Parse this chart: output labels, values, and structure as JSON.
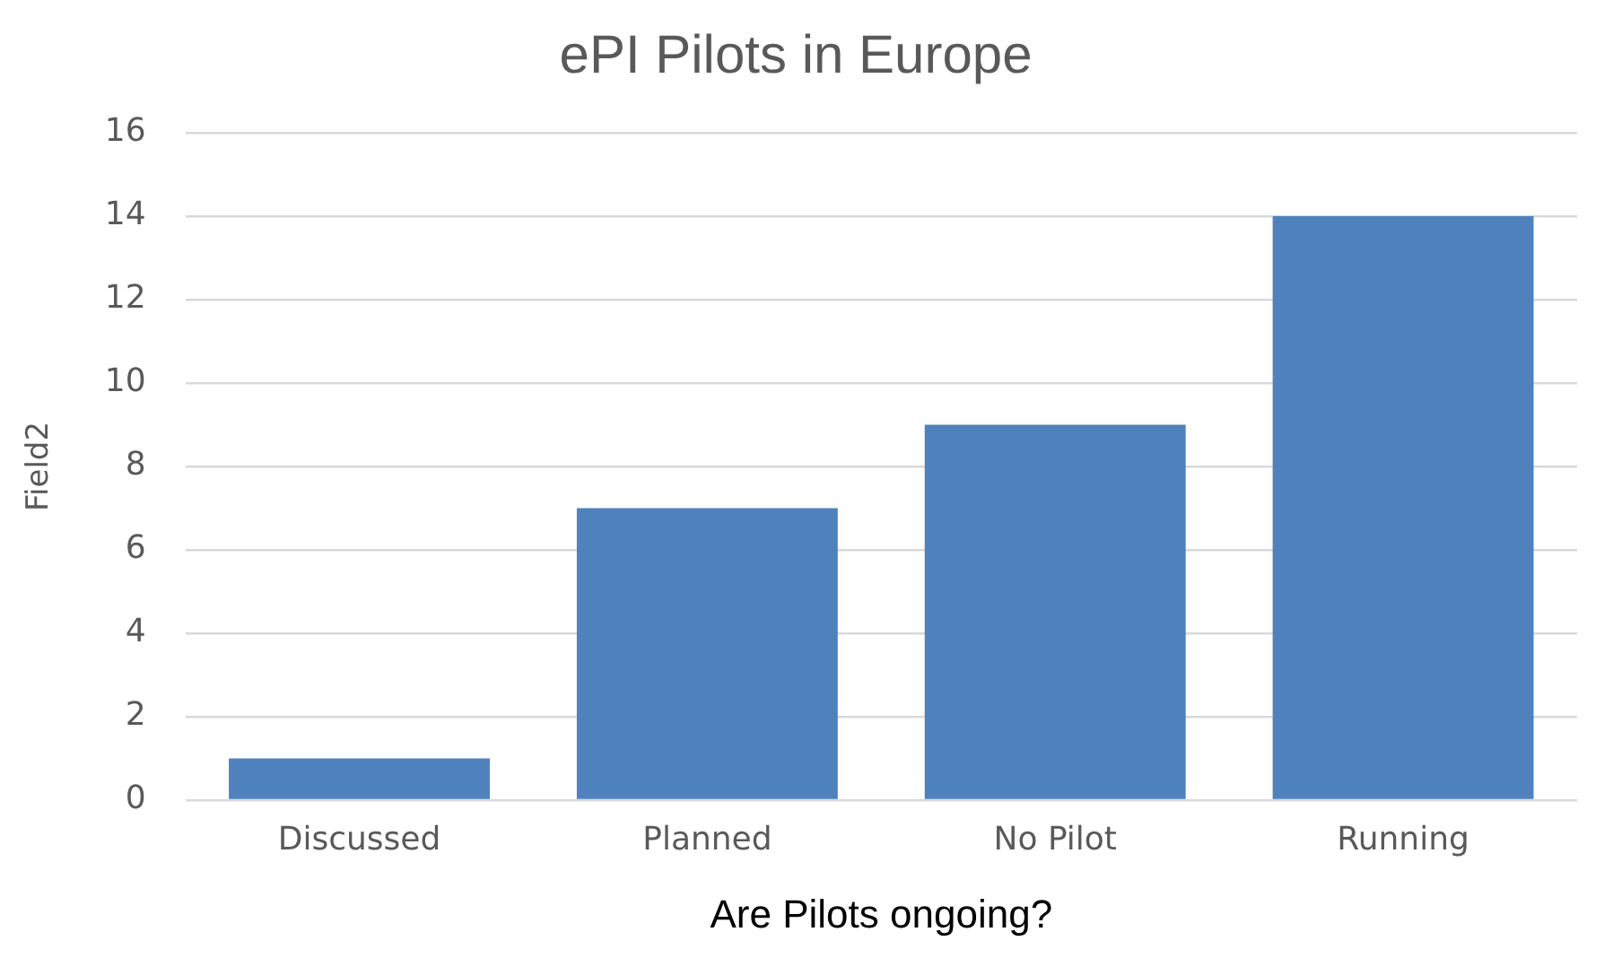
{
  "chart_data": {
    "type": "bar",
    "title": "ePI Pilots in Europe",
    "xlabel": "Are Pilots ongoing?",
    "ylabel": "Field2",
    "categories": [
      "Discussed",
      "Planned",
      "No Pilot",
      "Running"
    ],
    "values": [
      1,
      7,
      9,
      14
    ],
    "color": "#4f81bd",
    "ylim": [
      0,
      16
    ],
    "yticks": [
      0,
      2,
      4,
      6,
      8,
      10,
      12,
      14,
      16
    ],
    "grid": "y",
    "legend": false
  }
}
